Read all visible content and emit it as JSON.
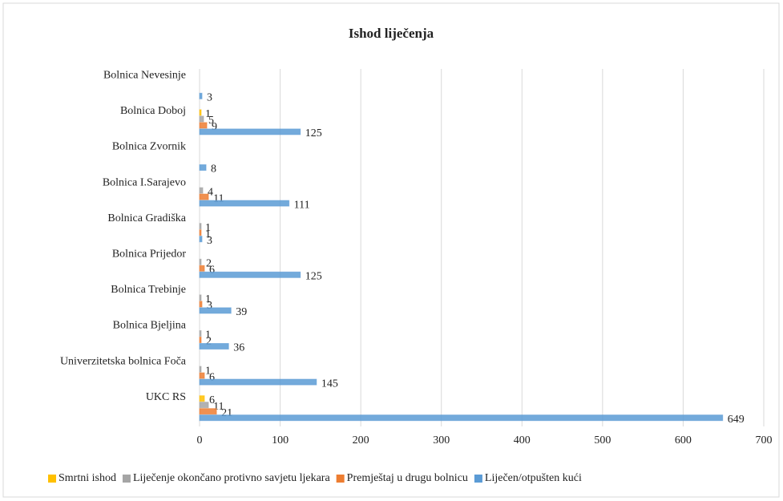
{
  "chart_data": {
    "type": "hbar",
    "title": "Ishod liječenja",
    "categories": [
      "Bolnica Nevesinje",
      "Bolnica Doboj",
      "Bolnica Zvornik",
      "Bolnica I.Sarajevo",
      "Bolnica Gradiška",
      "Bolnica Prijedor",
      "Bolnica Trebinje",
      "Bolnica Bjeljina",
      "Univerzitetska bolnica Foča",
      "UKC RS"
    ],
    "series": [
      {
        "name": "Smrtni ishod",
        "color": "#ffc000",
        "values": [
          null,
          1,
          null,
          null,
          null,
          null,
          null,
          null,
          null,
          6
        ]
      },
      {
        "name": "Liječenje okončano protivno savjetu ljekara",
        "color": "#a5a5a5",
        "values": [
          null,
          5,
          null,
          4,
          1,
          2,
          1,
          1,
          1,
          11
        ]
      },
      {
        "name": "Premještaj u drugu bolnicu",
        "color": "#ed7d31",
        "values": [
          null,
          9,
          null,
          11,
          1,
          6,
          3,
          2,
          6,
          21
        ]
      },
      {
        "name": "Liječen/otpušten kući",
        "color": "#5b9bd5",
        "values": [
          3,
          125,
          8,
          111,
          3,
          125,
          39,
          36,
          145,
          649
        ]
      }
    ],
    "xlim": [
      0,
      700
    ],
    "xticks": [
      0,
      100,
      200,
      300,
      400,
      500,
      600,
      700
    ],
    "grid": true,
    "legend": "bottom"
  }
}
